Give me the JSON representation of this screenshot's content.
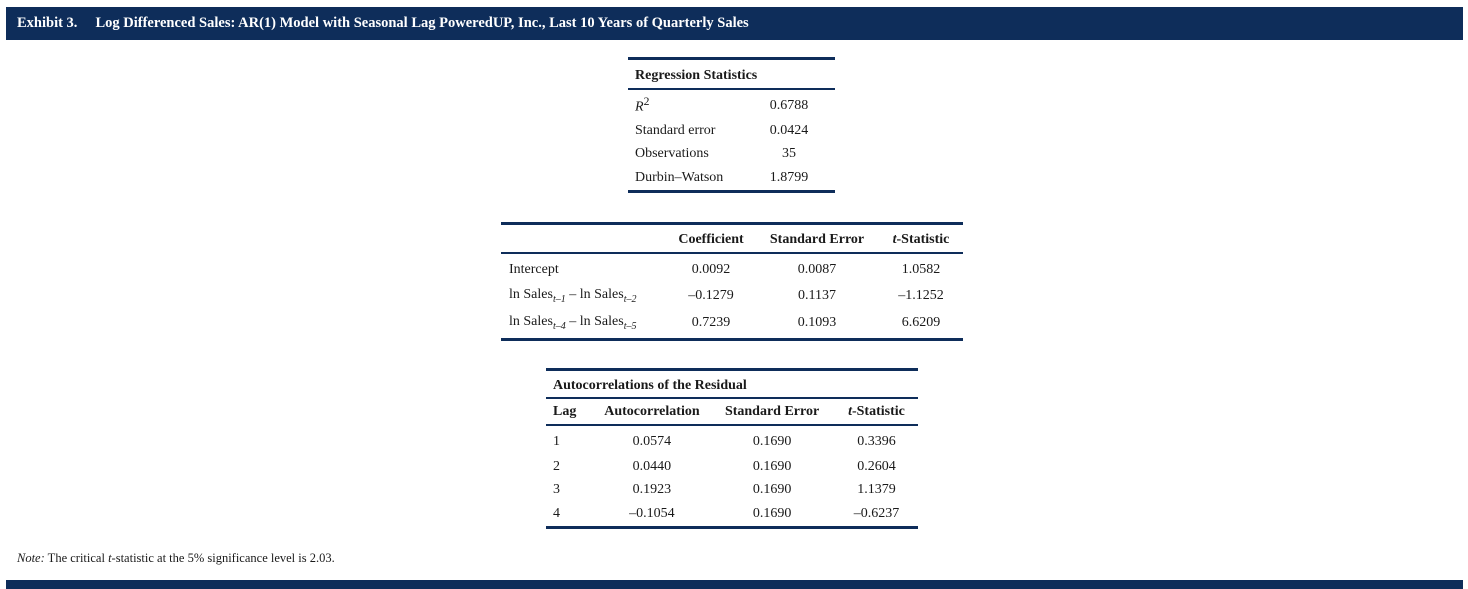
{
  "header": {
    "exhibit": "Exhibit 3.",
    "title": "Log Differenced Sales: AR(1) Model with Seasonal Lag PoweredUP, Inc., Last 10 Years of Quarterly Sales"
  },
  "regression_statistics": {
    "title": "Regression Statistics",
    "rows": [
      {
        "label_main": "R",
        "label_sup": "2",
        "value": "0.6788"
      },
      {
        "label": "Standard error",
        "value": "0.0424"
      },
      {
        "label": "Observations",
        "value": "35"
      },
      {
        "label": "Durbin–Watson",
        "value": "1.8799"
      }
    ]
  },
  "coefficients": {
    "headers": [
      "Coefficient",
      "Standard Error",
      "t",
      "-Statistic"
    ],
    "rows": [
      {
        "label": "Intercept",
        "coefficient": "0.0092",
        "std_error": "0.0087",
        "t_stat": "1.0582"
      },
      {
        "label_a": "ln Sales",
        "sub_a": "t–1",
        "label_b": " – ln Sales",
        "sub_b": "t–2",
        "coefficient": "–0.1279",
        "std_error": "0.1137",
        "t_stat": "–1.1252"
      },
      {
        "label_a": "ln Sales",
        "sub_a": "t–4",
        "label_b": " – ln Sales",
        "sub_b": "t–5",
        "coefficient": "0.7239",
        "std_error": "0.1093",
        "t_stat": "6.6209"
      }
    ]
  },
  "autocorrelations": {
    "title": "Autocorrelations of the Residual",
    "headers": [
      "Lag",
      "Autocorrelation",
      "Standard Error",
      "t",
      "-Statistic"
    ],
    "rows": [
      {
        "lag": "1",
        "autocorrelation": "0.0574",
        "std_error": "0.1690",
        "t_stat": "0.3396"
      },
      {
        "lag": "2",
        "autocorrelation": "0.0440",
        "std_error": "0.1690",
        "t_stat": "0.2604"
      },
      {
        "lag": "3",
        "autocorrelation": "0.1923",
        "std_error": "0.1690",
        "t_stat": "1.1379"
      },
      {
        "lag": "4",
        "autocorrelation": "–0.1054",
        "std_error": "0.1690",
        "t_stat": "–0.6237"
      }
    ]
  },
  "note": {
    "label": "Note:",
    "text_a": " The critical ",
    "t": "t",
    "text_b": "-statistic at the 5% significance level is 2.03."
  },
  "colors": {
    "accent": "#0e2d5a"
  }
}
